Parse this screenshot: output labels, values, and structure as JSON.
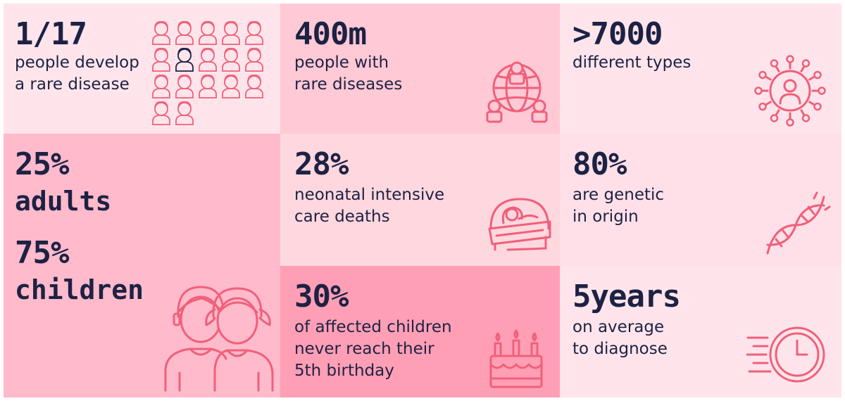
{
  "stats": {
    "c1": {
      "value": "1/17",
      "line1": "people develop",
      "line2": "a rare disease",
      "icon": "people-grid-icon"
    },
    "c2": {
      "value": "400m",
      "line1": "people with",
      "line2": "rare diseases",
      "icon": "globe-people-icon"
    },
    "c3": {
      "value": ">7000",
      "line1": "different types",
      "icon": "virus-person-icon"
    },
    "c4": {
      "value1": "25%",
      "label1": "adults",
      "value2": "75%",
      "label2": "children",
      "icon": "two-children-icon"
    },
    "c5": {
      "value": "28%",
      "line1": "neonatal intensive",
      "line2": "care deaths",
      "icon": "baby-incubator-icon"
    },
    "c6": {
      "value": "80%",
      "line1": "are genetic",
      "line2": "in origin",
      "icon": "dna-icon"
    },
    "c7": {
      "value": "30%",
      "line1": "of affected children",
      "line2": "never reach their",
      "line3": "5th birthday",
      "icon": "birthday-cake-icon"
    },
    "c8": {
      "value": "5years",
      "line1": "on average",
      "line2": "to diagnose",
      "icon": "clock-icon"
    }
  },
  "colors": {
    "accent": "#f0607a",
    "text": "#1d2244",
    "bg_light": "#ffe6ec",
    "bg_mid": "#ffd0da",
    "bg_strong": "#ffb4c4",
    "bg_deep": "#ff9fb3"
  }
}
